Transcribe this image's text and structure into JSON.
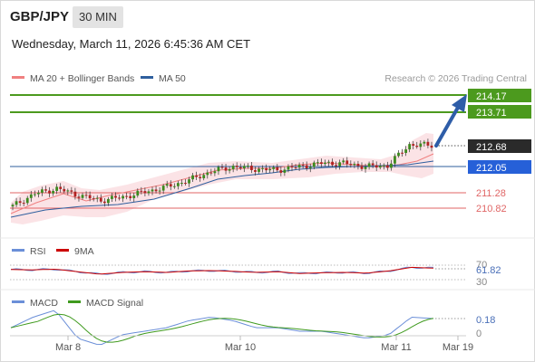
{
  "header": {
    "pair": "GBP/JPY",
    "timeframe": "30 MIN",
    "timestamp": "Wednesday, March 11, 2026 6:45:36 AM CET"
  },
  "legend": {
    "ma20_label": "MA 20 + Bollinger Bands",
    "ma50_label": "MA 50",
    "credit": "Research © 2026 Trading Central"
  },
  "colors": {
    "green_level": "#4c9a1e",
    "red_level": "#e06666",
    "ma50": "#2f5f9e",
    "current": "#2a2a2a",
    "bollinger_fill": "#fadadd",
    "ma20": "#f08080",
    "arrow": "#2e5da8",
    "rsi": "#6b8fd8",
    "rsi_ma": "#cc0000",
    "macd": "#6b8fd8",
    "macd_signal": "#3f9a1e"
  },
  "levels": [
    {
      "label": "214.17",
      "kind": "resistance"
    },
    {
      "label": "213.71",
      "kind": "resistance"
    },
    {
      "label": "212.68",
      "kind": "current"
    },
    {
      "label": "212.05",
      "kind": "pivot"
    },
    {
      "label": "211.28",
      "kind": "support"
    },
    {
      "label": "210.82",
      "kind": "support"
    }
  ],
  "rsi_panel": {
    "label": "RSI",
    "ma_label": "9MA",
    "value": "61.82",
    "tick_70": "70",
    "tick_30": "30"
  },
  "macd_panel": {
    "label": "MACD",
    "signal_label": "MACD Signal",
    "value": "0.18",
    "zero": "0"
  },
  "x_axis": {
    "ticks": [
      "Mar 8",
      "Mar 10",
      "Mar 11",
      "Mar 19"
    ]
  },
  "chart_data": {
    "type": "candlestick",
    "y_range": [
      210.6,
      214.5
    ],
    "price_path": [
      {
        "time": "Mar 8 start",
        "close": 210.88
      },
      {
        "time": "",
        "close": 211.25
      },
      {
        "time": "",
        "close": 211.4
      },
      {
        "time": "",
        "close": 211.2
      },
      {
        "time": "",
        "close": 211.05
      },
      {
        "time": "",
        "close": 211.15
      },
      {
        "time": "",
        "close": 211.3
      },
      {
        "time": "",
        "close": 211.45
      },
      {
        "time": "",
        "close": 211.65
      },
      {
        "time": "",
        "close": 211.9
      },
      {
        "time": "Mar 10",
        "close": 212.05
      },
      {
        "time": "",
        "close": 211.98
      },
      {
        "time": "",
        "close": 211.95
      },
      {
        "time": "",
        "close": 212.05
      },
      {
        "time": "",
        "close": 212.15
      },
      {
        "time": "",
        "close": 212.15
      },
      {
        "time": "",
        "close": 212.05
      },
      {
        "time": "Mar 11",
        "close": 212.08
      },
      {
        "time": "",
        "close": 212.7
      },
      {
        "time": "",
        "close": 212.68
      }
    ],
    "projection": {
      "from": 212.68,
      "to": 214.17
    },
    "rsi": [
      58,
      57,
      59,
      52,
      45,
      50,
      52,
      50,
      54,
      55,
      53,
      50,
      52,
      47,
      49,
      50,
      48,
      54,
      64,
      61.82
    ],
    "macd": [
      0.05,
      0.2,
      0.3,
      -0.1,
      -0.2,
      -0.05,
      0.0,
      0.05,
      0.15,
      0.2,
      0.15,
      0.05,
      0.05,
      0.0,
      0.0,
      -0.05,
      -0.1,
      -0.05,
      0.2,
      0.18
    ]
  }
}
